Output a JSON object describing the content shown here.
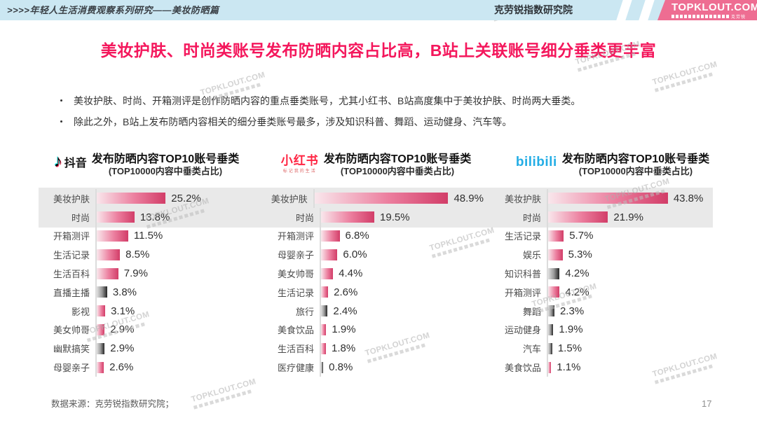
{
  "header": {
    "left_title": ">>>>年轻人生活消费观察系列研究——美妆防晒篇",
    "center_title": "克劳锐指数研究院",
    "logo_text": "TOPKLOUT.COM",
    "logo_tagline": "克劳锐"
  },
  "title": "美妆护肤、时尚类账号发布防晒内容占比高，B站上关联账号细分垂类更丰富",
  "bullets": [
    "美妆护肤、时尚、开箱测评是创作防晒内容的重点垂类账号，尤其小红书、B站高度集中于美妆护肤、时尚两大垂类。",
    "除此之外，B站上发布防晒内容相关的细分垂类账号最多，涉及知识科普、舞蹈、运动健身、汽车等。"
  ],
  "watermark": {
    "text": "TOPKLOUT.COM"
  },
  "footer": {
    "source_note": "数据来源：克劳锐指数研究院；",
    "page_number": "17"
  },
  "colors": {
    "accent_title": "#f4175c",
    "topbar_bg": "#cbe7f2",
    "logo_bg": "#ee6d92",
    "bar_pink_start": "#f9e7ec",
    "bar_pink_end": "#d23d68",
    "bar_dark_start": "#e0e0e0",
    "bar_dark_end": "#262626",
    "band_bg": "#e9e9e9",
    "douyin_cyan": "#25f4ee",
    "douyin_red": "#fe2c55",
    "xiaohongshu_red": "#ff2442",
    "bilibili_blue": "#23ade5"
  },
  "chart_data": [
    {
      "type": "bar",
      "platform": "抖音",
      "platform_icon": "douyin-note-icon",
      "title": "发布防晒内容TOP10账号垂类",
      "subtitle": "(TOP10000内容中垂类占比)",
      "unit": "%",
      "xlim": [
        0,
        30
      ],
      "categories": [
        "美妆护肤",
        "时尚",
        "开箱测评",
        "生活记录",
        "生活百科",
        "直播主播",
        "影视",
        "美女帅哥",
        "幽默搞笑",
        "母婴亲子"
      ],
      "values": [
        25.2,
        13.8,
        11.5,
        8.5,
        7.9,
        3.8,
        3.1,
        2.9,
        2.9,
        2.6
      ],
      "dark": [
        false,
        false,
        false,
        false,
        false,
        true,
        false,
        false,
        true,
        false
      ]
    },
    {
      "type": "bar",
      "platform": "小红书",
      "platform_tagline": "标记我的生活",
      "platform_icon": "xiaohongshu-logo",
      "title": "发布防晒内容TOP10账号垂类",
      "subtitle": "(TOP10000内容中垂类占比)",
      "unit": "%",
      "xlim": [
        0,
        55
      ],
      "categories": [
        "美妆护肤",
        "时尚",
        "开箱测评",
        "母婴亲子",
        "美女帅哥",
        "生活记录",
        "旅行",
        "美食饮品",
        "生活百科",
        "医疗健康"
      ],
      "values": [
        48.9,
        19.5,
        6.8,
        6.0,
        4.4,
        2.6,
        2.4,
        1.9,
        1.8,
        0.8
      ],
      "dark": [
        false,
        false,
        false,
        false,
        false,
        false,
        true,
        false,
        false,
        true
      ]
    },
    {
      "type": "bar",
      "platform": "bilibili",
      "platform_icon": "bilibili-logo",
      "title": "发布防晒内容TOP10账号垂类",
      "subtitle": "(TOP10000内容中垂类占比)",
      "unit": "%",
      "xlim": [
        0,
        50
      ],
      "categories": [
        "美妆护肤",
        "时尚",
        "生活记录",
        "娱乐",
        "知识科普",
        "开箱测评",
        "舞蹈",
        "运动健身",
        "汽车",
        "美食饮品"
      ],
      "values": [
        43.8,
        21.9,
        5.7,
        5.3,
        4.2,
        4.2,
        2.3,
        1.9,
        1.5,
        1.1
      ],
      "dark": [
        false,
        false,
        false,
        false,
        true,
        false,
        true,
        true,
        true,
        false
      ]
    }
  ]
}
